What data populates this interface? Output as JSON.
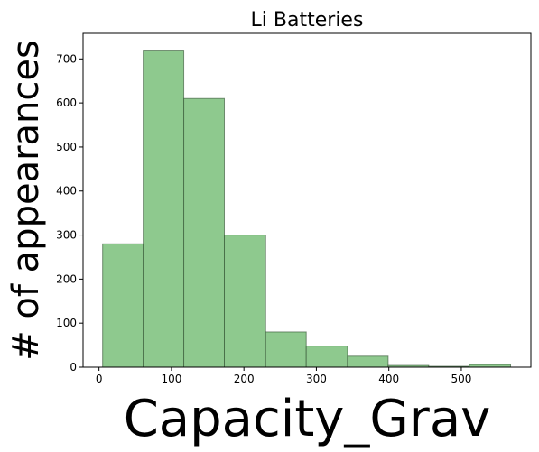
{
  "chart_data": {
    "type": "bar",
    "title": "Li Batteries",
    "xlabel": "Capacity_Grav",
    "ylabel": "# of appearances",
    "bins": [
      {
        "start": 5,
        "end": 61,
        "count": 280
      },
      {
        "start": 61,
        "end": 117,
        "count": 720
      },
      {
        "start": 117,
        "end": 173,
        "count": 610
      },
      {
        "start": 173,
        "end": 230,
        "count": 300
      },
      {
        "start": 230,
        "end": 286,
        "count": 80
      },
      {
        "start": 286,
        "end": 343,
        "count": 48
      },
      {
        "start": 343,
        "end": 399,
        "count": 25
      },
      {
        "start": 399,
        "end": 455,
        "count": 4
      },
      {
        "start": 455,
        "end": 511,
        "count": 2
      },
      {
        "start": 511,
        "end": 568,
        "count": 6
      }
    ],
    "xlim": [
      -22,
      596
    ],
    "ylim": [
      0,
      758
    ],
    "x_ticks": [
      0,
      100,
      200,
      300,
      400,
      500
    ],
    "y_ticks": [
      0,
      100,
      200,
      300,
      400,
      500,
      600,
      700
    ],
    "bar_color": "#8ec98e",
    "bar_edge_color": "#2f4f2f",
    "grid": false,
    "legend": "none"
  }
}
